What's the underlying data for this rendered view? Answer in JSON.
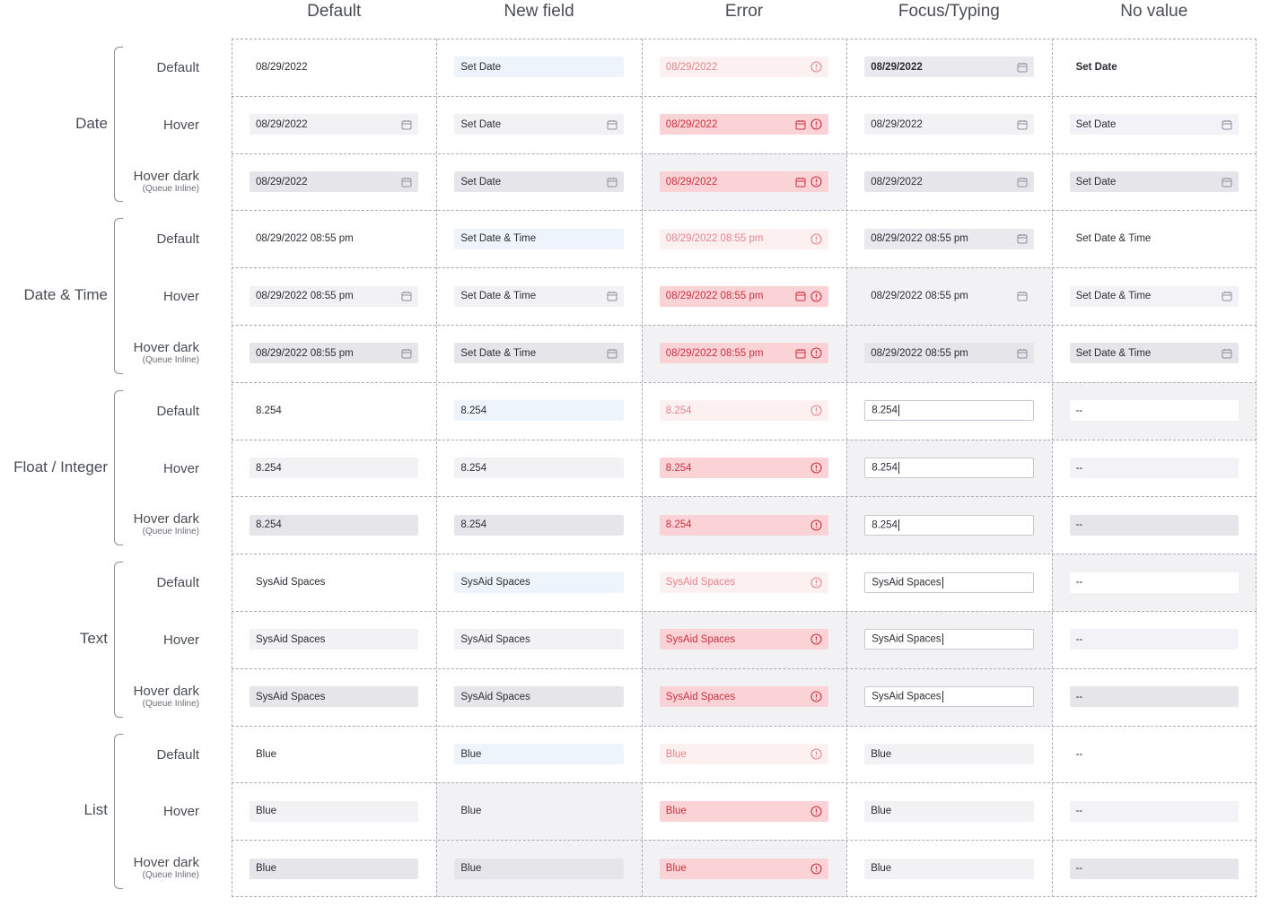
{
  "columns": [
    "Default",
    "New field",
    "Error",
    "Focus/Typing",
    "No value"
  ],
  "states": [
    {
      "label": "Default",
      "sub": ""
    },
    {
      "label": "Hover",
      "sub": ""
    },
    {
      "label": "Hover dark",
      "sub": "(Queue Inline)"
    }
  ],
  "groups": [
    {
      "label": "Date",
      "rows": [
        [
          {
            "text": "08/29/2022",
            "style": "plain"
          },
          {
            "text": "Set Date",
            "style": "new"
          },
          {
            "text": "08/29/2022",
            "style": "errdef",
            "icons": [
              "alert-icon"
            ]
          },
          {
            "text": "08/29/2022",
            "style": "focusd",
            "bold": true,
            "icons": [
              "calendar-icon"
            ]
          },
          {
            "text": "Set Date",
            "style": "plain",
            "bold": true
          }
        ],
        [
          {
            "text": "08/29/2022",
            "style": "hover",
            "icons": [
              "calendar-icon"
            ]
          },
          {
            "text": "Set Date",
            "style": "hover",
            "icons": [
              "calendar-icon"
            ]
          },
          {
            "text": "08/29/2022",
            "style": "errhov",
            "icons": [
              "calendar-icon",
              "alert-icon"
            ]
          },
          {
            "text": "08/29/2022",
            "style": "hover",
            "icons": [
              "calendar-icon"
            ]
          },
          {
            "text": "Set Date",
            "style": "novalue",
            "icons": [
              "calendar-icon"
            ]
          }
        ],
        [
          {
            "text": "08/29/2022",
            "style": "dark",
            "icons": [
              "calendar-icon"
            ]
          },
          {
            "text": "Set Date",
            "style": "dark",
            "icons": [
              "calendar-icon"
            ]
          },
          {
            "text": "08/29/2022",
            "style": "errhov",
            "icons": [
              "calendar-icon",
              "alert-icon"
            ]
          },
          {
            "text": "08/29/2022",
            "style": "dark",
            "icons": [
              "calendar-icon"
            ]
          },
          {
            "text": "Set Date",
            "style": "dark",
            "icons": [
              "calendar-icon"
            ]
          }
        ]
      ]
    },
    {
      "label": "Date & Time",
      "rows": [
        [
          {
            "text": "08/29/2022  08:55 pm",
            "style": "plain"
          },
          {
            "text": "Set Date & Time",
            "style": "new"
          },
          {
            "text": "08/29/2022  08:55 pm",
            "style": "errdef",
            "icons": [
              "alert-icon"
            ]
          },
          {
            "text": "08/29/2022  08:55 pm",
            "style": "focusd",
            "icons": [
              "calendar-icon"
            ]
          },
          {
            "text": "Set Date & Time",
            "style": "plain"
          }
        ],
        [
          {
            "text": "08/29/2022  08:55 pm",
            "style": "hover",
            "icons": [
              "calendar-icon"
            ]
          },
          {
            "text": "Set Date & Time",
            "style": "hover",
            "icons": [
              "calendar-icon"
            ]
          },
          {
            "text": "08/29/2022  08:55 pm",
            "style": "errhov",
            "icons": [
              "calendar-icon",
              "alert-icon"
            ]
          },
          {
            "text": "08/29/2022  08:55 pm",
            "style": "hover",
            "icons": [
              "calendar-icon"
            ]
          },
          {
            "text": "Set Date & Time",
            "style": "novalue",
            "icons": [
              "calendar-icon"
            ]
          }
        ],
        [
          {
            "text": "08/29/2022  08:55 pm",
            "style": "dark",
            "icons": [
              "calendar-icon"
            ]
          },
          {
            "text": "Set Date & Time",
            "style": "dark",
            "icons": [
              "calendar-icon"
            ]
          },
          {
            "text": "08/29/2022  08:55 pm",
            "style": "errhov",
            "icons": [
              "calendar-icon",
              "alert-icon"
            ]
          },
          {
            "text": "08/29/2022  08:55 pm",
            "style": "dark",
            "icons": [
              "calendar-icon"
            ]
          },
          {
            "text": "Set Date & Time",
            "style": "dark",
            "icons": [
              "calendar-icon"
            ]
          }
        ]
      ]
    },
    {
      "label": "Float / Integer",
      "rows": [
        [
          {
            "text": "8.254",
            "style": "plain"
          },
          {
            "text": "8.254",
            "style": "new"
          },
          {
            "text": "8.254",
            "style": "errdef",
            "icons": [
              "alert-icon"
            ]
          },
          {
            "text": "8.254",
            "style": "input",
            "caret": true
          },
          {
            "text": "--",
            "style": "nvwhite"
          }
        ],
        [
          {
            "text": "8.254",
            "style": "hover"
          },
          {
            "text": "8.254",
            "style": "hover"
          },
          {
            "text": "8.254",
            "style": "errhov",
            "icons": [
              "alert-icon"
            ]
          },
          {
            "text": "8.254",
            "style": "input",
            "caret": true
          },
          {
            "text": "--",
            "style": "novalue"
          }
        ],
        [
          {
            "text": "8.254",
            "style": "dark"
          },
          {
            "text": "8.254",
            "style": "dark"
          },
          {
            "text": "8.254",
            "style": "errhov",
            "icons": [
              "alert-icon"
            ]
          },
          {
            "text": "8.254",
            "style": "input",
            "caret": true
          },
          {
            "text": "--",
            "style": "dark"
          }
        ]
      ]
    },
    {
      "label": "Text",
      "rows": [
        [
          {
            "text": "SysAid Spaces",
            "style": "plain"
          },
          {
            "text": "SysAid Spaces",
            "style": "new"
          },
          {
            "text": "SysAid Spaces",
            "style": "errdef",
            "icons": [
              "alert-icon"
            ]
          },
          {
            "text": "SysAid Spaces",
            "style": "input",
            "caret": true
          },
          {
            "text": "--",
            "style": "nvwhite"
          }
        ],
        [
          {
            "text": "SysAid Spaces",
            "style": "hover"
          },
          {
            "text": "SysAid Spaces",
            "style": "hover"
          },
          {
            "text": "SysAid Spaces",
            "style": "errhov",
            "icons": [
              "alert-icon"
            ]
          },
          {
            "text": "SysAid Spaces",
            "style": "input",
            "caret": true
          },
          {
            "text": "--",
            "style": "novalue"
          }
        ],
        [
          {
            "text": "SysAid Spaces",
            "style": "dark"
          },
          {
            "text": "SysAid Spaces",
            "style": "dark"
          },
          {
            "text": "SysAid Spaces",
            "style": "errhov",
            "icons": [
              "alert-icon"
            ]
          },
          {
            "text": "SysAid Spaces",
            "style": "input",
            "caret": true
          },
          {
            "text": "--",
            "style": "dark"
          }
        ]
      ]
    },
    {
      "label": "List",
      "rows": [
        [
          {
            "text": "Blue",
            "style": "plain"
          },
          {
            "text": "Blue",
            "style": "new"
          },
          {
            "text": "Blue",
            "style": "errdef",
            "icons": [
              "alert-icon"
            ]
          },
          {
            "text": "Blue",
            "style": "hover"
          },
          {
            "text": "--",
            "style": "plain"
          }
        ],
        [
          {
            "text": "Blue",
            "style": "hover"
          },
          {
            "text": "Blue",
            "style": "plain"
          },
          {
            "text": "Blue",
            "style": "errhov",
            "icons": [
              "alert-icon"
            ]
          },
          {
            "text": "Blue",
            "style": "hover"
          },
          {
            "text": "--",
            "style": "novalue"
          }
        ],
        [
          {
            "text": "Blue",
            "style": "dark"
          },
          {
            "text": "Blue",
            "style": "dark"
          },
          {
            "text": "Blue",
            "style": "errhov",
            "icons": [
              "alert-icon"
            ]
          },
          {
            "text": "Blue",
            "style": "hover"
          },
          {
            "text": "--",
            "style": "dark"
          }
        ]
      ]
    }
  ],
  "shaded_cells": [
    [
      2,
      2
    ],
    [
      5,
      2
    ],
    [
      4,
      3
    ],
    [
      5,
      3
    ],
    [
      6,
      4
    ],
    [
      9,
      4
    ],
    [
      7,
      3
    ],
    [
      8,
      3
    ],
    [
      8,
      2
    ],
    [
      10,
      3
    ],
    [
      11,
      3
    ],
    [
      10,
      2
    ],
    [
      11,
      2
    ],
    [
      13,
      1
    ],
    [
      14,
      1
    ],
    [
      14,
      2
    ]
  ],
  "colors": {
    "error_text": "#c7323f",
    "error_light_text": "#e5848d",
    "error_bg": "#fbd2d6",
    "new_field_bg": "#eef4fb",
    "grid_line": "#a9abb2"
  }
}
